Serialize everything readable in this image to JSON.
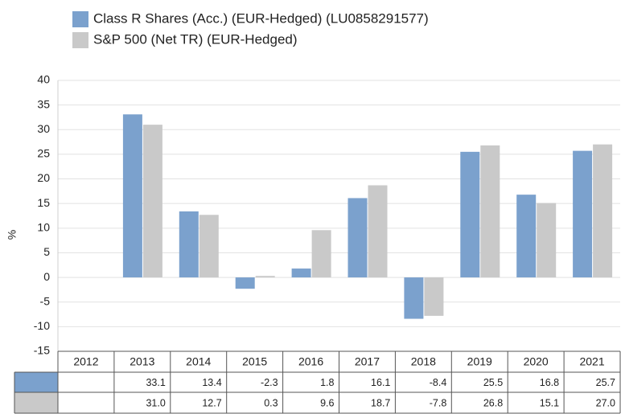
{
  "chart_data": {
    "type": "bar",
    "y_label": "%",
    "categories": [
      "2012",
      "2013",
      "2014",
      "2015",
      "2016",
      "2017",
      "2018",
      "2019",
      "2020",
      "2021"
    ],
    "series": [
      {
        "name": "Class R Shares (Acc.) (EUR-Hedged) (LU0858291577)",
        "color": "#7ba1cd",
        "values": [
          null,
          33.1,
          13.4,
          -2.3,
          1.8,
          16.1,
          -8.4,
          25.5,
          16.8,
          25.7
        ],
        "value_labels": [
          null,
          "33.1",
          "13.4",
          "-2.3",
          "1.8",
          "16.1",
          "-8.4",
          "25.5",
          "16.8",
          "25.7"
        ]
      },
      {
        "name": "S&P 500 (Net TR) (EUR-Hedged)",
        "color": "#c9c9c9",
        "values": [
          null,
          31.0,
          12.7,
          0.3,
          9.6,
          18.7,
          -7.8,
          26.8,
          15.1,
          27.0
        ],
        "value_labels": [
          null,
          "31.0",
          "12.7",
          "0.3",
          "9.6",
          "18.7",
          "-7.8",
          "26.8",
          "15.1",
          "27.0"
        ]
      }
    ],
    "ylim": [
      -15,
      40
    ],
    "yticks": [
      -15,
      -10,
      -5,
      0,
      5,
      10,
      15,
      20,
      25,
      30,
      35,
      40
    ],
    "grid": true
  }
}
